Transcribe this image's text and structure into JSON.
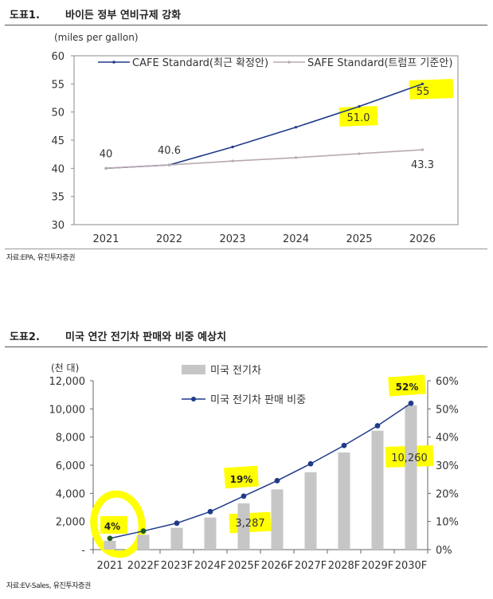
{
  "figure1": {
    "number": "도표1.",
    "title": "바이든 정부 연비규제 강화",
    "source": "자료:EPA, 유진투자증권",
    "chart_data": {
      "type": "line",
      "ylabel": "(miles per gallon)",
      "xlabel": "",
      "categories": [
        "2021",
        "2022",
        "2023",
        "2024",
        "2025",
        "2026"
      ],
      "ylim": [
        30,
        60
      ],
      "yticks": [
        30,
        35,
        40,
        45,
        50,
        55,
        60
      ],
      "grid": false,
      "legend": "top-right",
      "series": [
        {
          "name": "CAFE Standard(최근 확정안)",
          "color": "#1f3a8a",
          "values": [
            40.0,
            40.6,
            43.8,
            47.3,
            51.0,
            55.0
          ],
          "labels": [
            "",
            "40.6",
            "",
            "",
            "51.0",
            "55"
          ]
        },
        {
          "name": "SAFE Standard(트럼프 기준안)",
          "color": "#b8a9b0",
          "values": [
            40.0,
            40.6,
            41.3,
            41.9,
            42.6,
            43.3
          ],
          "labels": [
            "40",
            "",
            "",
            "",
            "",
            "43.3"
          ]
        }
      ],
      "highlight_color": "#ffff00"
    }
  },
  "figure2": {
    "number": "도표2.",
    "title": "미국 연간 전기차 판매와 비중 예상치",
    "source": "자료:EV-Sales, 유진투자증권",
    "chart_data": {
      "type": "bar",
      "categories": [
        "2021",
        "2022F",
        "2023F",
        "2024F",
        "2025F",
        "2026F",
        "2027F",
        "2028F",
        "2029F",
        "2030F"
      ],
      "y_unit": "(천 대)",
      "ylim": [
        0,
        12000
      ],
      "yticks": [
        "-",
        "2,000",
        "4,000",
        "6,000",
        "8,000",
        "10,000",
        "12,000"
      ],
      "y2lim": [
        0,
        60
      ],
      "y2ticks": [
        "0%",
        "10%",
        "20%",
        "30%",
        "40%",
        "50%",
        "60%"
      ],
      "legend": "top-center",
      "series": [
        {
          "name": "미국 전기차",
          "type": "bar",
          "axis": "left",
          "color": "#c6c6c6",
          "values": [
            630,
            1060,
            1550,
            2280,
            3287,
            4280,
            5500,
            6900,
            8450,
            10260
          ]
        },
        {
          "name": "미국 전기차 판매 비중",
          "type": "line",
          "axis": "right",
          "color": "#1f3a8a",
          "values": [
            4,
            6.6,
            9.4,
            13.5,
            19,
            24.5,
            30.5,
            37,
            44,
            52
          ]
        }
      ],
      "labels": {
        "share_2021": "4%",
        "share_2025": "19%",
        "share_2030": "52%",
        "bar_2025": "3,287",
        "bar_2030": "10,260"
      },
      "highlight_color": "#ffff00"
    }
  }
}
